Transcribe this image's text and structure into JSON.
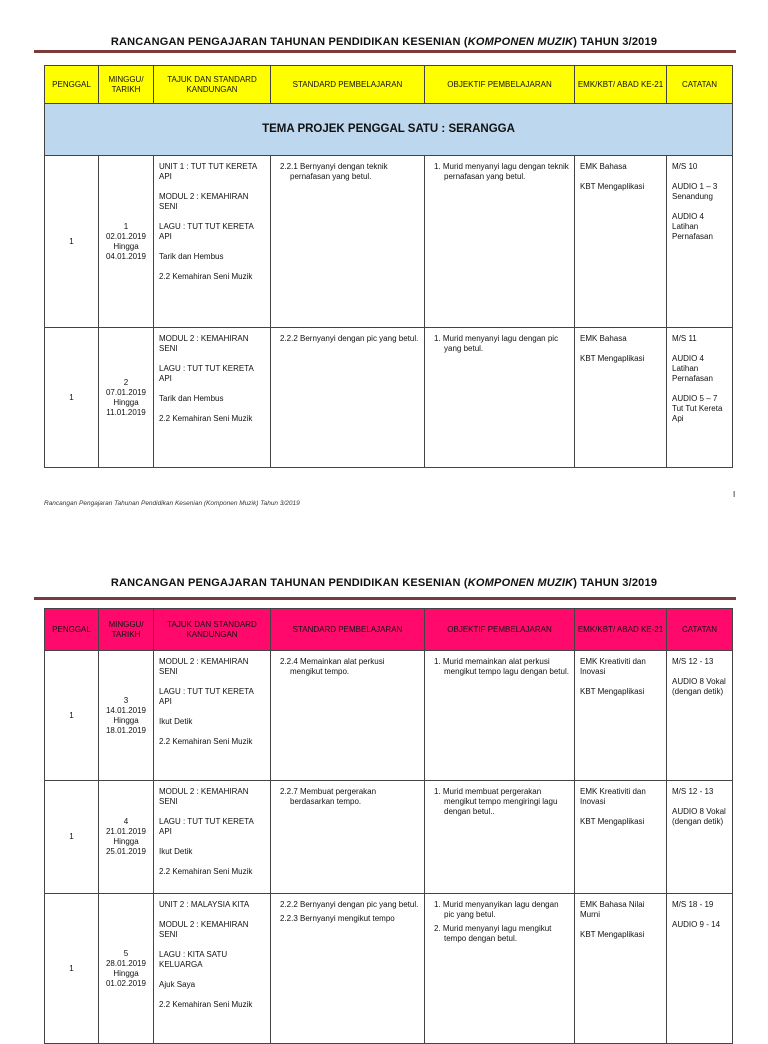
{
  "page1": {
    "title_pre": "RANCANGAN PENGAJARAN TAHUNAN PENDIDIKAN KESENIAN (",
    "title_em": "KOMPONEN MUZIK",
    "title_post": ") TAHUN 3/2019",
    "header_color": "#ffff00",
    "headers": [
      "PENGGAL",
      "MINGGU/ TARIKH",
      "TAJUK DAN STANDARD KANDUNGAN",
      "STANDARD PEMBELAJARAN",
      "OBJEKTIF PEMBELAJARAN",
      "EMK/KBT/ ABAD KE-21",
      "CATATAN"
    ],
    "theme": "TEMA PROJEK PENGGAL SATU : SERANGGA",
    "rows": [
      {
        "penggal": "1",
        "minggu": [
          "1",
          "02.01.2019",
          "Hingga",
          "04.01.2019"
        ],
        "tajuk": [
          "UNIT 1 : TUT TUT KERETA API",
          "MODUL 2 : KEMAHIRAN SENI",
          "LAGU : TUT TUT KERETA API",
          "Tarik dan Hembus",
          "2.2 Kemahiran Seni Muzik"
        ],
        "standard": [
          "2.2.1 Bernyanyi dengan teknik pernafasan yang betul."
        ],
        "objektif": [
          "1.  Murid menyanyi lagu dengan teknik pernafasan yang betul."
        ],
        "emk": [
          "EMK Bahasa",
          "KBT Mengaplikasi"
        ],
        "catatan": [
          "M/S 10",
          "AUDIO 1 – 3 Senandung",
          "AUDIO 4 Latihan Pernafasan"
        ]
      },
      {
        "penggal": "1",
        "minggu": [
          "2",
          "07.01.2019",
          "Hingga",
          "11.01.2019"
        ],
        "tajuk": [
          "MODUL 2 : KEMAHIRAN SENI",
          "LAGU : TUT TUT KERETA API",
          "Tarik dan Hembus",
          "2.2 Kemahiran Seni Muzik"
        ],
        "standard": [
          "2.2.2 Bernyanyi dengan pic yang betul."
        ],
        "objektif": [
          "1.  Murid menyanyi lagu dengan pic yang betul."
        ],
        "emk": [
          "EMK Bahasa",
          "KBT Mengaplikasi"
        ],
        "catatan": [
          "M/S 11",
          "AUDIO 4 Latihan Pernafasan",
          "AUDIO 5 – 7 Tut Tut Kereta Api"
        ]
      }
    ],
    "footer": "Rancangan Pengajaran Tahunan Pendidikan Kesenian (Komponen Muzik) Tahun 3/2019",
    "page_number": "I"
  },
  "page2": {
    "title_pre": "RANCANGAN PENGAJARAN TAHUNAN PENDIDIKAN KESENIAN (",
    "title_em": "KOMPONEN MUZIK",
    "title_post": ") TAHUN 3/2019",
    "header_color": "#ff0a6c",
    "headers": [
      "PENGGAL",
      "MINGGU/ TARIKH",
      "TAJUK DAN STANDARD KANDUNGAN",
      "STANDARD PEMBELAJARAN",
      "OBJEKTIF PEMBELAJARAN",
      "EMK/KBT/ ABAD KE-21",
      "CATATAN"
    ],
    "rows": [
      {
        "penggal": "1",
        "minggu": [
          "3",
          "14.01.2019",
          "Hingga",
          "18.01.2019"
        ],
        "tajuk": [
          "MODUL 2 : KEMAHIRAN SENI",
          "LAGU : TUT TUT KERETA API",
          "Ikut Detik",
          "2.2 Kemahiran Seni Muzik"
        ],
        "standard": [
          "2.2.4 Memainkan alat perkusi mengikut tempo."
        ],
        "objektif": [
          "1.  Murid memainkan alat perkusi mengikut tempo lagu dengan betul."
        ],
        "emk": [
          "EMK Kreativiti dan Inovasi",
          "KBT Mengaplikasi"
        ],
        "catatan": [
          "M/S 12 - 13",
          "AUDIO 8 Vokal (dengan detik)"
        ]
      },
      {
        "penggal": "1",
        "minggu": [
          "4",
          "21.01.2019",
          "Hingga",
          "25.01.2019"
        ],
        "tajuk": [
          "MODUL 2 : KEMAHIRAN SENI",
          "LAGU : TUT TUT KERETA API",
          "Ikut Detik",
          "2.2 Kemahiran Seni Muzik"
        ],
        "standard": [
          "2.2.7 Membuat pergerakan berdasarkan tempo."
        ],
        "objektif": [
          "1.  Murid membuat pergerakan mengikut tempo mengiringi lagu dengan betul.."
        ],
        "emk": [
          "EMK Kreativiti dan Inovasi",
          "KBT Mengaplikasi"
        ],
        "catatan": [
          "M/S 12 - 13",
          "AUDIO 8 Vokal (dengan detik)"
        ]
      },
      {
        "penggal": "1",
        "minggu": [
          "5",
          "28.01.2019",
          "Hingga",
          "01.02.2019"
        ],
        "tajuk": [
          "UNIT 2 : MALAYSIA KITA",
          "MODUL 2 : KEMAHIRAN SENI",
          "LAGU : KITA SATU KELUARGA",
          "Ajuk Saya",
          "2.2  Kemahiran Seni Muzik"
        ],
        "standard": [
          "2.2.2 Bernyanyi dengan pic yang betul.",
          "2.2.3 Bernyanyi mengikut tempo"
        ],
        "objektif": [
          "1.  Murid menyanyikan lagu dengan pic yang betul.",
          "2.  Murid menyanyi lagu mengikut tempo dengan betul."
        ],
        "emk": [
          "EMK Bahasa Nilai Murni",
          "KBT Mengaplikasi"
        ],
        "catatan": [
          "M/S 18 - 19",
          "AUDIO 9 - 14"
        ]
      }
    ]
  }
}
